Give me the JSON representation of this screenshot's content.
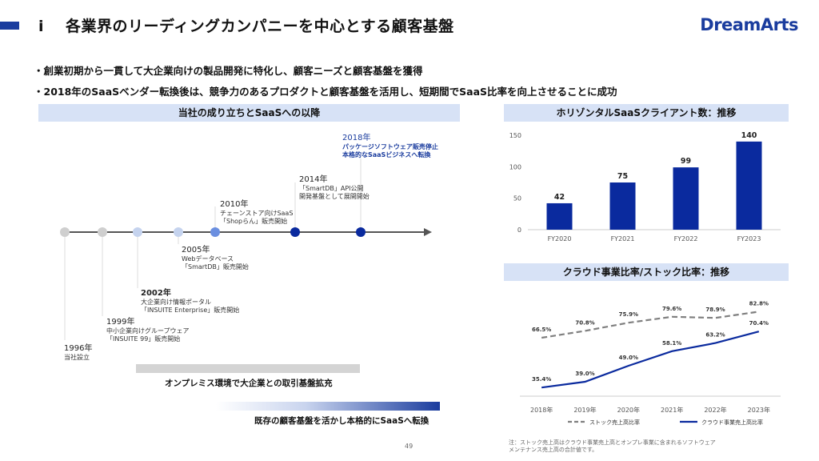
{
  "header": {
    "number": "ⅰ",
    "title": "各業界のリーディングカンパニーを中心とする顧客基盤",
    "logo": "DreamArts"
  },
  "bullets": [
    "・創業初期から一貫して大企業向けの製品開発に特化し、顧客ニーズと顧客基盤を獲得",
    "・2018年のSaaSベンダー転換後は、競争力のあるプロダクトと顧客基盤を活用し、短期間でSaaS比率を向上させることに成功"
  ],
  "timeline": {
    "heading": "当社の成り立ちとSaaSへの以降",
    "events": [
      {
        "year": "1996年",
        "lines": [
          "当社設立"
        ]
      },
      {
        "year": "1999年",
        "lines": [
          "中小企業向けグループウェア",
          "「INSUITE 99」販売開始"
        ]
      },
      {
        "year": "2002年",
        "lines": [
          "大企業向け情報ポータル",
          "「INSUITE Enterprise」販売開始"
        ]
      },
      {
        "year": "2005年",
        "lines": [
          "Webデータベース",
          "「SmartDB」販売開始"
        ]
      },
      {
        "year": "2010年",
        "lines": [
          "チェーンストア向けSaaS",
          "「Shopらん」販売開始"
        ]
      },
      {
        "year": "2014年",
        "lines": [
          "「SmartDB」API公開",
          "開発基盤として展開開始"
        ]
      },
      {
        "year": "2018年",
        "lines": [
          "パッケージソフトウェア販売停止",
          "本格的なSaaSビジネスへ転換"
        ]
      }
    ],
    "band1": "オンプレミス環境で大企業との取引基盤拡充",
    "band2": "既存の顧客基盤を活かし本格的にSaaSへ転換"
  },
  "colors": {
    "brand": "#1a3c9e",
    "dot_gray": "#cfcfcf",
    "dot_light": "#c5d3ee",
    "dot_mid": "#6b8fe0",
    "dot_dark": "#1a3c9e",
    "header_bg": "#d7e2f6"
  },
  "chart_data": [
    {
      "type": "bar",
      "title": "ホリゾンタルSaaSクライアント数：推移",
      "categories": [
        "FY2020",
        "FY2021",
        "FY2022",
        "FY2023"
      ],
      "values": [
        42,
        75,
        99,
        140
      ],
      "ylim": [
        0,
        150
      ],
      "yticks": [
        0,
        50,
        100,
        150
      ],
      "color": "#0a2a9e"
    },
    {
      "type": "line",
      "title": "クラウド事業比率/ストック比率：推移",
      "categories": [
        "2018年",
        "2019年",
        "2020年",
        "2021年",
        "2022年",
        "2023年"
      ],
      "ylim": [
        30,
        90
      ],
      "series": [
        {
          "name": "ストック売上高比率",
          "values": [
            66.5,
            70.8,
            75.9,
            79.6,
            78.9,
            82.8
          ],
          "labels": [
            "66.5%",
            "70.8%",
            "75.9%",
            "79.6%",
            "78.9%",
            "82.8%"
          ],
          "style": "dashed",
          "color": "#7f7f7f"
        },
        {
          "name": "クラウド事業売上高比率",
          "values": [
            35.4,
            39.0,
            49.0,
            58.1,
            63.2,
            70.4
          ],
          "labels": [
            "35.4%",
            "39.0%",
            "49.0%",
            "58.1%",
            "63.2%",
            "70.4%"
          ],
          "style": "solid",
          "color": "#0a2a9e"
        }
      ]
    }
  ],
  "footer": {
    "page": "49",
    "note": "注：ストック売上高はクラウド事業売上高とオンプレ事業に含まれるソフトウェアメンテナンス売上高の合計値です。"
  }
}
